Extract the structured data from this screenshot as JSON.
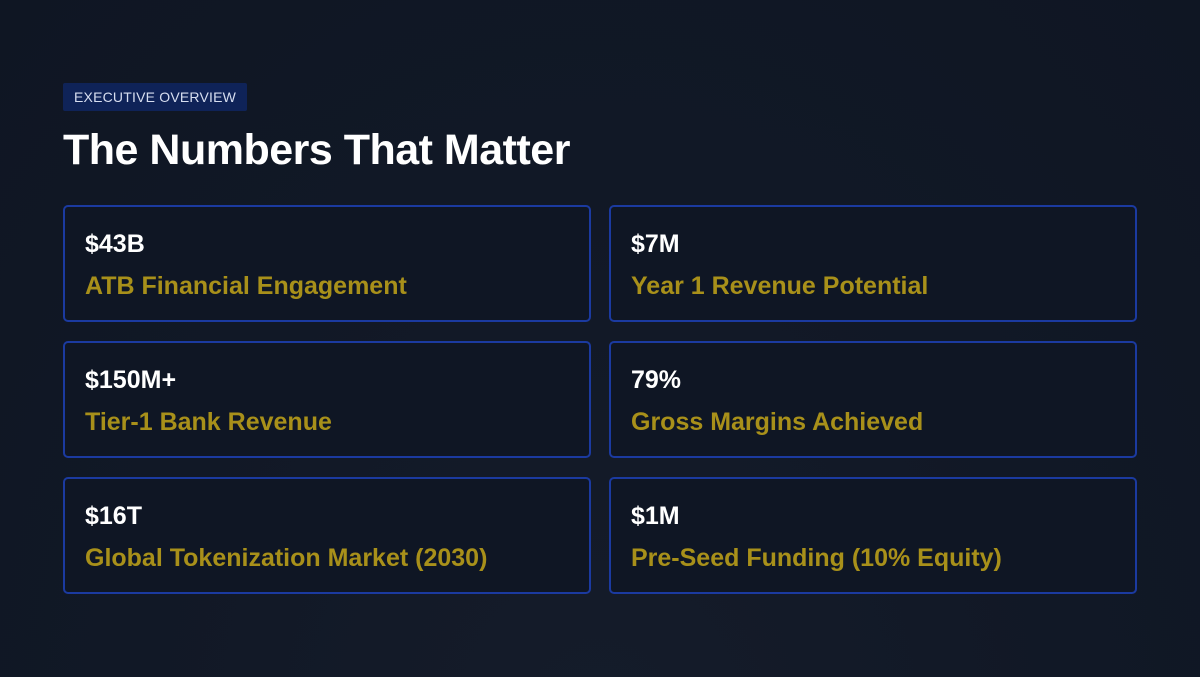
{
  "header": {
    "tag": "EXECUTIVE OVERVIEW",
    "title": "The Numbers That Matter"
  },
  "metrics": [
    {
      "value": "$43B",
      "label": "ATB Financial Engagement"
    },
    {
      "value": "$7M",
      "label": "Year 1 Revenue Potential"
    },
    {
      "value": "$150M+",
      "label": "Tier-1 Bank Revenue"
    },
    {
      "value": "79%",
      "label": "Gross Margins Achieved"
    },
    {
      "value": "$16T",
      "label": "Global Tokenization Market (2030)"
    },
    {
      "value": "$1M",
      "label": "Pre-Seed Funding (10% Equity)"
    }
  ],
  "colors": {
    "background": "#111826",
    "card_border": "#1b3aa0",
    "accent_label": "#a8901a",
    "tag_background": "#0f2358"
  }
}
